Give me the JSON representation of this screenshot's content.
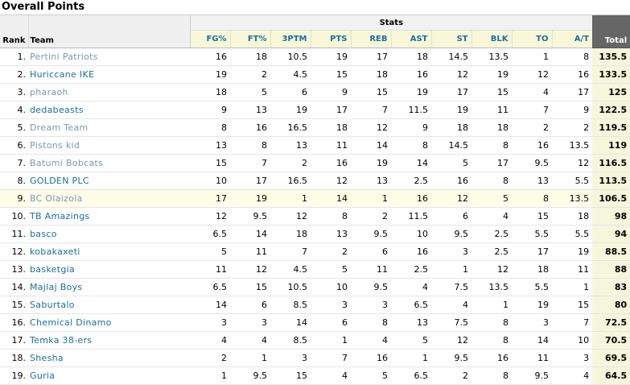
{
  "page_title": "Overall Points",
  "headers": {
    "stats_group": "Stats",
    "rank": "Rank",
    "team": "Team",
    "stat_columns": [
      "FG%",
      "FT%",
      "3PTM",
      "PTS",
      "REB",
      "AST",
      "ST",
      "BLK",
      "TO",
      "A/T"
    ],
    "total": "Total"
  },
  "rows": [
    {
      "rank": "1.",
      "team": "Pertini Patriots",
      "muted": true,
      "stats": [
        "16",
        "18",
        "10.5",
        "19",
        "17",
        "18",
        "14.5",
        "13.5",
        "1",
        "8"
      ],
      "total": "135.5"
    },
    {
      "rank": "2.",
      "team": "Huriccane IKE",
      "muted": false,
      "stats": [
        "19",
        "2",
        "4.5",
        "15",
        "18",
        "16",
        "12",
        "19",
        "12",
        "16"
      ],
      "total": "133.5"
    },
    {
      "rank": "3.",
      "team": "pharaoh",
      "muted": true,
      "stats": [
        "18",
        "5",
        "6",
        "9",
        "15",
        "19",
        "17",
        "15",
        "4",
        "17"
      ],
      "total": "125"
    },
    {
      "rank": "4.",
      "team": "dedabeasts",
      "muted": false,
      "stats": [
        "9",
        "13",
        "19",
        "17",
        "7",
        "11.5",
        "19",
        "11",
        "7",
        "9"
      ],
      "total": "122.5"
    },
    {
      "rank": "5.",
      "team": "Dream Team",
      "muted": true,
      "stats": [
        "8",
        "16",
        "16.5",
        "18",
        "12",
        "9",
        "18",
        "18",
        "2",
        "2"
      ],
      "total": "119.5"
    },
    {
      "rank": "6.",
      "team": "Pistons kid",
      "muted": true,
      "stats": [
        "13",
        "8",
        "13",
        "11",
        "14",
        "8",
        "14.5",
        "8",
        "16",
        "13.5"
      ],
      "total": "119"
    },
    {
      "rank": "7.",
      "team": "Batumi Bobcats",
      "muted": true,
      "stats": [
        "15",
        "7",
        "2",
        "16",
        "19",
        "14",
        "5",
        "17",
        "9.5",
        "12"
      ],
      "total": "116.5"
    },
    {
      "rank": "8.",
      "team": "GOLDEN PLC",
      "muted": false,
      "stats": [
        "10",
        "17",
        "16.5",
        "12",
        "13",
        "2.5",
        "16",
        "8",
        "13",
        "5.5"
      ],
      "total": "113.5"
    },
    {
      "rank": "9.",
      "team": "BC Olaizola",
      "muted": true,
      "highlight": true,
      "stats": [
        "17",
        "19",
        "1",
        "14",
        "1",
        "16",
        "12",
        "5",
        "8",
        "13.5"
      ],
      "total": "106.5"
    },
    {
      "rank": "10.",
      "team": "TB Amazings",
      "muted": false,
      "stats": [
        "12",
        "9.5",
        "12",
        "8",
        "2",
        "11.5",
        "6",
        "4",
        "15",
        "18"
      ],
      "total": "98"
    },
    {
      "rank": "11.",
      "team": "basco",
      "muted": false,
      "stats": [
        "6.5",
        "14",
        "18",
        "13",
        "9.5",
        "10",
        "9.5",
        "2.5",
        "5.5",
        "5.5"
      ],
      "total": "94"
    },
    {
      "rank": "12.",
      "team": "kobakaxeti",
      "muted": false,
      "stats": [
        "5",
        "11",
        "7",
        "2",
        "6",
        "16",
        "3",
        "2.5",
        "17",
        "19"
      ],
      "total": "88.5"
    },
    {
      "rank": "13.",
      "team": "basketgia",
      "muted": false,
      "stats": [
        "11",
        "12",
        "4.5",
        "5",
        "11",
        "2.5",
        "1",
        "12",
        "18",
        "11"
      ],
      "total": "88"
    },
    {
      "rank": "14.",
      "team": "Majlaj Boys",
      "muted": false,
      "stats": [
        "6.5",
        "15",
        "10.5",
        "10",
        "9.5",
        "4",
        "7.5",
        "13.5",
        "5.5",
        "1"
      ],
      "total": "83"
    },
    {
      "rank": "15.",
      "team": "Saburtalo",
      "muted": false,
      "stats": [
        "14",
        "6",
        "8.5",
        "3",
        "3",
        "6.5",
        "4",
        "1",
        "19",
        "15"
      ],
      "total": "80"
    },
    {
      "rank": "16.",
      "team": "Chemical Dinamo",
      "muted": false,
      "stats": [
        "3",
        "3",
        "14",
        "6",
        "8",
        "13",
        "7.5",
        "8",
        "3",
        "7"
      ],
      "total": "72.5"
    },
    {
      "rank": "17.",
      "team": "Temka 38-ers",
      "muted": false,
      "stats": [
        "4",
        "4",
        "8.5",
        "1",
        "4",
        "5",
        "12",
        "8",
        "14",
        "10"
      ],
      "total": "70.5"
    },
    {
      "rank": "18.",
      "team": "Shesha",
      "muted": false,
      "stats": [
        "2",
        "1",
        "3",
        "7",
        "16",
        "1",
        "9.5",
        "16",
        "11",
        "3"
      ],
      "total": "69.5"
    },
    {
      "rank": "19.",
      "team": "Guria",
      "muted": false,
      "stats": [
        "1",
        "9.5",
        "15",
        "4",
        "5",
        "6.5",
        "2",
        "8",
        "9.5",
        "4"
      ],
      "total": "64.5"
    }
  ]
}
